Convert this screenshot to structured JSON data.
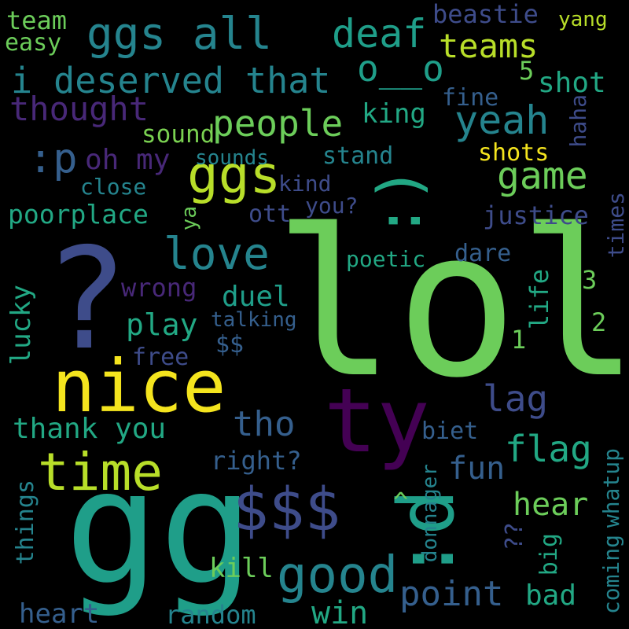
{
  "title": "Word cloud",
  "words": {
    "lol": "lol",
    "gg": "gg",
    "question": "?",
    "nice": "nice",
    "ty": "ty",
    "smile": ":)",
    "colon_d": ":d",
    "dollars3": "$$$",
    "time": "time",
    "good": "good",
    "ggs": "ggs",
    "ggs_all": "ggs all",
    "deaf": "deaf",
    "teams": "teams",
    "i_deserved_that": "i deserved that",
    "o_o": "o__o",
    "shot": "shot",
    "five": "5",
    "people": "people",
    "yeah": "yeah",
    "thought": "thought",
    "colon_p": ":p",
    "oh_my": "oh my",
    "game": "game",
    "love": "love",
    "king": "king",
    "sound": "sound",
    "fine": "fine",
    "haha": "haha",
    "shots": "shots",
    "sounds": "sounds",
    "stand": "stand",
    "close": "close",
    "kind": "kind",
    "poorplace": "poorplace",
    "you_q": "you?",
    "ott": "ott",
    "justice": "justice",
    "times": "times",
    "ya": "ya",
    "poetic": "poetic",
    "dare": "dare",
    "three": "3",
    "two": "2",
    "one": "1",
    "life": "life",
    "wrong": "wrong",
    "duel": "duel",
    "lucky": "lucky",
    "play": "play",
    "talking": "talking",
    "dollars2": "$$",
    "free": "free",
    "lag": "lag",
    "tho": "tho",
    "thank_you": "thank you",
    "biet": "biet",
    "flag": "flag",
    "right_q": "right?",
    "fun": "fun",
    "caret": "^",
    "hear": "hear",
    "qq": "??",
    "big": "big",
    "donnager": "donnager",
    "coming": "coming",
    "whatup": "whatup",
    "things": "things",
    "kill": "kill",
    "point": "point",
    "bad": "bad",
    "win": "win",
    "heart": "heart",
    "random": "random",
    "team": "team",
    "easy": "easy",
    "beastie": "beastie",
    "yang": "yang"
  },
  "palette": {
    "bright_green": "#6ccd5a",
    "green": "#4cc26c",
    "yellow_green": "#b8de29",
    "yellow": "#f4e41e",
    "teal": "#1f9e89",
    "cyan_teal": "#25848e",
    "blue": "#3e4c8a",
    "slate": "#355f8d",
    "purple": "#440154",
    "indigo": "#482878",
    "sea_green": "#22a884",
    "lime": "#7ad151"
  }
}
